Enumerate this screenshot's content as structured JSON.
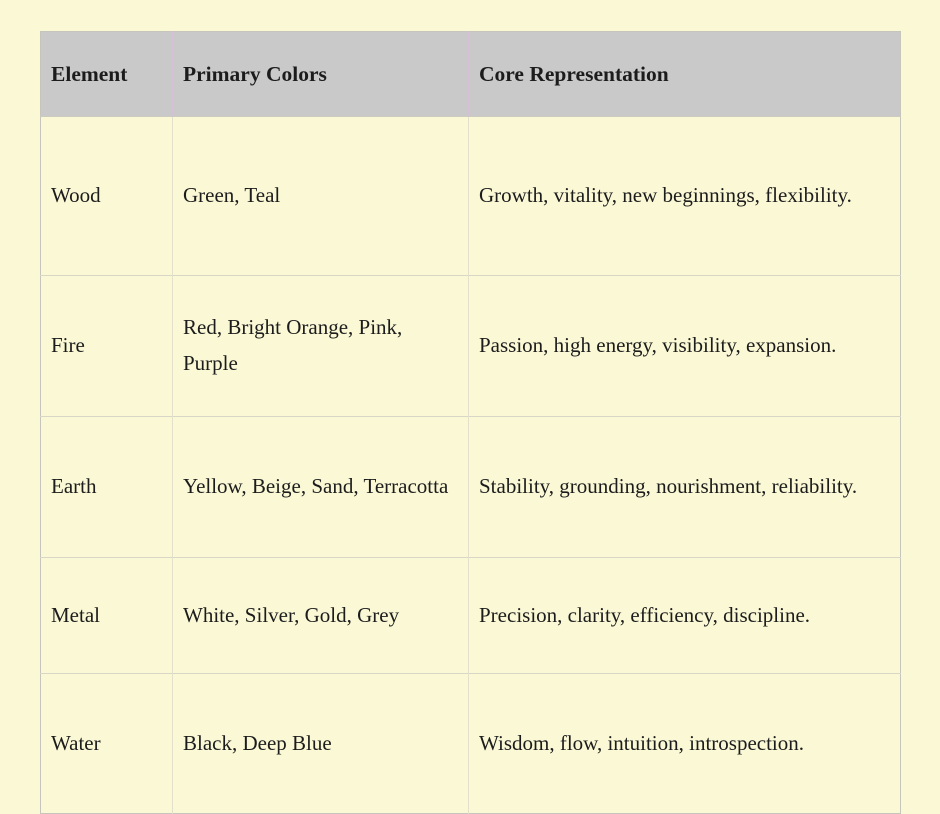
{
  "page": {
    "background_color": "#FAF8D5",
    "header_background_color": "#C9C9C9",
    "header_divider_color": "#D5BFD6",
    "text_color": "#1c1c1c"
  },
  "table": {
    "columns": [
      "Element",
      "Primary Colors",
      "Core Representation"
    ],
    "rows": [
      {
        "element": "Wood",
        "colors": "Green, Teal",
        "representation": "Growth, vitality, new beginnings, flexibility."
      },
      {
        "element": "Fire",
        "colors": "Red, Bright Orange, Pink, Purple",
        "representation": "Passion, high energy, visibility, expansion."
      },
      {
        "element": "Earth",
        "colors": "Yellow, Beige, Sand, Terracotta",
        "representation": "Stability, grounding, nourishment, reliability."
      },
      {
        "element": "Metal",
        "colors": "White, Silver, Gold, Grey",
        "representation": "Precision, clarity, efficiency, discipline."
      },
      {
        "element": "Water",
        "colors": "Black, Deep Blue",
        "representation": "Wisdom, flow, intuition, introspection."
      }
    ]
  },
  "chart_data": {
    "type": "table",
    "title": "",
    "columns": [
      "Element",
      "Primary Colors",
      "Core Representation"
    ],
    "rows": [
      [
        "Wood",
        "Green, Teal",
        "Growth, vitality, new beginnings, flexibility."
      ],
      [
        "Fire",
        "Red, Bright Orange, Pink, Purple",
        "Passion, high energy, visibility, expansion."
      ],
      [
        "Earth",
        "Yellow, Beige, Sand, Terracotta",
        "Stability, grounding, nourishment, reliability."
      ],
      [
        "Metal",
        "White, Silver, Gold, Grey",
        "Precision, clarity, efficiency, discipline."
      ],
      [
        "Water",
        "Black, Deep Blue",
        "Wisdom, flow, intuition, introspection."
      ]
    ]
  }
}
